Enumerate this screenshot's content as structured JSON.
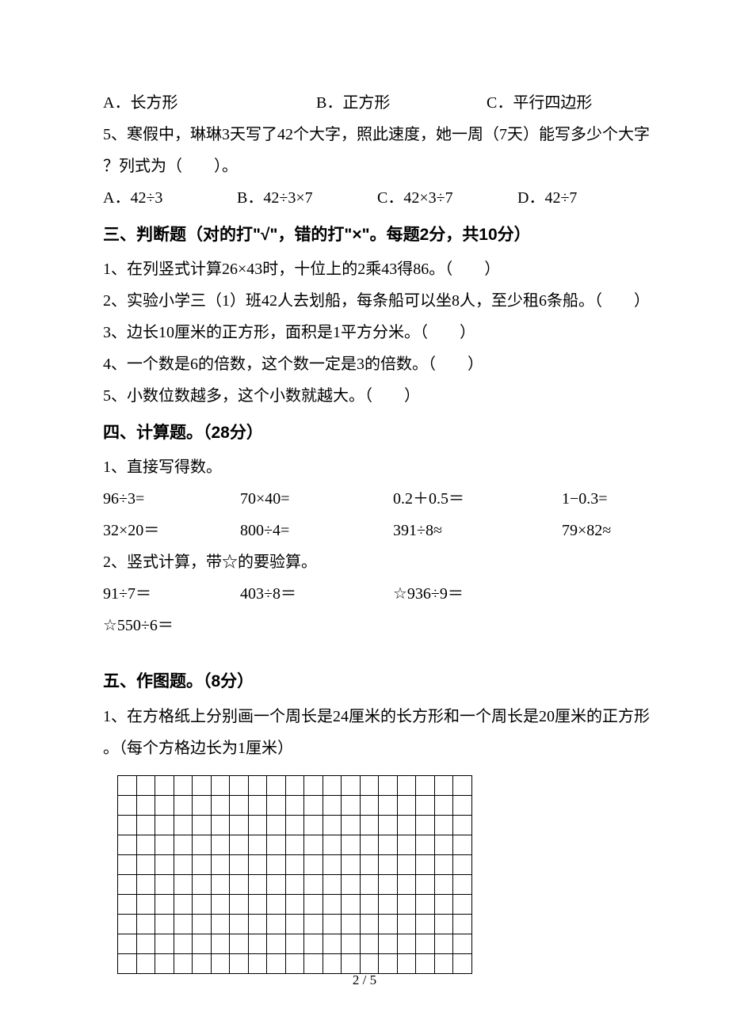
{
  "q4": {
    "a": "A．长方形",
    "b": "B．正方形",
    "c": "C．平行四边形"
  },
  "q5": {
    "stem1": "5、寒假中，琳琳3天写了42个大字，照此速度，她一周（7天）能写多少个大字",
    "stem2": "？列式为（　　）。",
    "a": "A．42÷3",
    "b": "B．42÷3×7",
    "c": "C．42×3÷7",
    "d": "D．42÷7"
  },
  "sec3": {
    "title": "三、判断题（对的打\"√\"，错的打\"×\"。每题2分，共10分）",
    "i1": "1、在列竖式计算26×43时，十位上的2乘43得86。（　　）",
    "i2": "2、实验小学三（1）班42人去划船，每条船可以坐8人，至少租6条船。（　　）",
    "i3": "3、边长10厘米的正方形，面积是1平方分米。（　　）",
    "i4": "4、一个数是6的倍数，这个数一定是3的倍数。（　　）",
    "i5": "5、小数位数越多，这个小数就越大。（　　）"
  },
  "sec4": {
    "title": "四、计算题。（28分）",
    "p1": "1、直接写得数。",
    "r1": {
      "c1": "96÷3=",
      "c2": "70×40=",
      "c3": "0.2＋0.5＝",
      "c4": "1−0.3="
    },
    "r2": {
      "c1": "32×20＝",
      "c2": "800÷4=",
      "c3": "391÷8≈",
      "c4": "79×82≈"
    },
    "p2": "2、竖式计算，带☆的要验算。",
    "r3": {
      "c1": "91÷7＝",
      "c2": "403÷8＝",
      "c3": "☆936÷9＝",
      "c4": "☆550÷6＝"
    }
  },
  "sec5": {
    "title": "五、作图题。（8分）",
    "p1a": "1、在方格纸上分别画一个周长是24厘米的长方形和一个周长是20厘米的正方形",
    "p1b": "。（每个方格边长为1厘米）",
    "grid_cols": 19,
    "grid_rows": 10
  },
  "pagenum": "2 / 5"
}
